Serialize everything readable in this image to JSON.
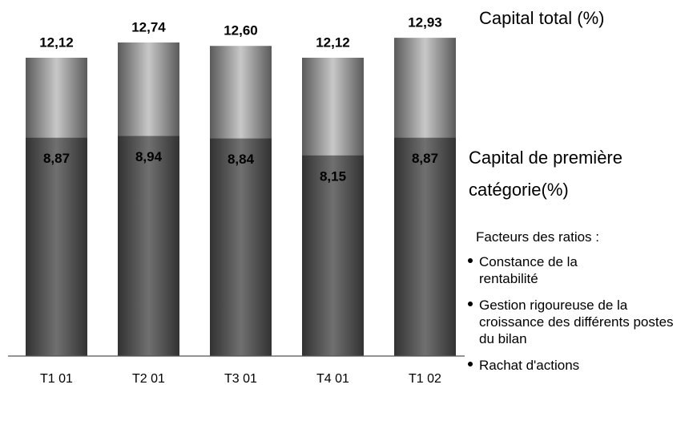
{
  "chart_data": {
    "type": "bar",
    "overlap": true,
    "categories": [
      "T1 01",
      "T2 01",
      "T3 01",
      "T4 01",
      "T1 02"
    ],
    "series": [
      {
        "name": "Capital total (%)",
        "color": "#c8c8c8",
        "values": [
          12.12,
          12.74,
          12.6,
          12.12,
          12.93
        ],
        "value_labels": [
          "12,12",
          "12,74",
          "12,60",
          "12,12",
          "12,93"
        ]
      },
      {
        "name": "Capital de première catégorie(%)",
        "color": "#707070",
        "values": [
          8.87,
          8.94,
          8.84,
          8.15,
          8.87
        ],
        "value_labels": [
          "8,87",
          "8,94",
          "8,84",
          "8,15",
          "8,87"
        ]
      }
    ],
    "ylim": [
      0,
      14.4
    ],
    "notes": {
      "title": "Facteurs des ratios :",
      "items": [
        "Constance de la rentabilité",
        "Gestion rigoureuse de la croissance des différents postes du bilan",
        "Rachat d'actions"
      ]
    }
  }
}
